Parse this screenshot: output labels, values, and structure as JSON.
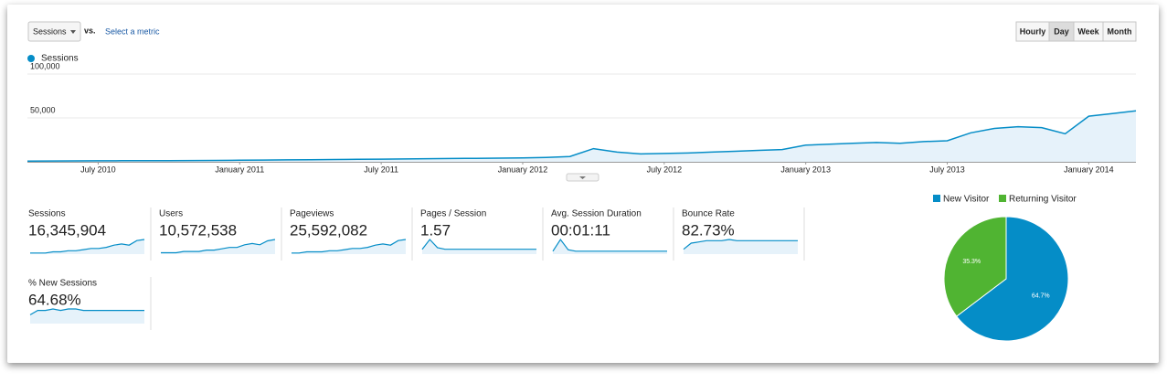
{
  "controls": {
    "metric": "Sessions",
    "vs": "vs.",
    "compare": "Select a metric",
    "granularity": [
      "Hourly",
      "Day",
      "Week",
      "Month"
    ],
    "active": 1
  },
  "chart_data": [
    {
      "type": "line",
      "x": [
        "2010-04",
        "2010-05",
        "2010-06",
        "2010-07",
        "2010-08",
        "2010-09",
        "2010-10",
        "2010-11",
        "2010-12",
        "2011-01",
        "2011-02",
        "2011-03",
        "2011-04",
        "2011-05",
        "2011-06",
        "2011-07",
        "2011-08",
        "2011-09",
        "2011-10",
        "2011-11",
        "2011-12",
        "2012-01",
        "2012-02",
        "2012-03",
        "2012-04",
        "2012-05",
        "2012-06",
        "2012-07",
        "2012-08",
        "2012-09",
        "2012-10",
        "2012-11",
        "2012-12",
        "2013-01",
        "2013-02",
        "2013-03",
        "2013-04",
        "2013-05",
        "2013-06",
        "2013-07",
        "2013-08",
        "2013-09",
        "2013-10",
        "2013-11",
        "2013-12",
        "2014-01",
        "2014-02",
        "2014-03"
      ],
      "series": [
        {
          "name": "Sessions",
          "color": "#058dc7",
          "values": [
            800,
            900,
            1000,
            1100,
            1200,
            1300,
            1400,
            1500,
            1600,
            1800,
            2000,
            2200,
            2400,
            2600,
            2800,
            3000,
            3200,
            3500,
            3800,
            4000,
            4200,
            4500,
            5000,
            6000,
            15000,
            11000,
            9000,
            9500,
            10000,
            11000,
            12000,
            13000,
            14000,
            19000,
            20000,
            21000,
            22000,
            21000,
            23000,
            24000,
            33000,
            38000,
            40000,
            39000,
            32000,
            52000,
            55000,
            58000
          ]
        }
      ],
      "xticks": [
        {
          "value": "2010-07",
          "label": "July 2010"
        },
        {
          "value": "2011-01",
          "label": "January 2011"
        },
        {
          "value": "2011-07",
          "label": "July 2011"
        },
        {
          "value": "2012-01",
          "label": "January 2012"
        },
        {
          "value": "2012-07",
          "label": "July 2012"
        },
        {
          "value": "2013-01",
          "label": "January 2013"
        },
        {
          "value": "2013-07",
          "label": "July 2013"
        },
        {
          "value": "2014-01",
          "label": "January 2014"
        }
      ],
      "ylim": [
        0,
        100000
      ],
      "yticks": [
        {
          "value": 50000,
          "label": "50,000"
        },
        {
          "value": 100000,
          "label": "100,000"
        }
      ],
      "grid": true
    },
    {
      "type": "pie",
      "categories": [
        "New Visitor",
        "Returning Visitor"
      ],
      "values": [
        64.7,
        35.3
      ],
      "value_labels": [
        "64.7%",
        "35.3%"
      ],
      "colors": [
        "#058dc7",
        "#50b432"
      ]
    }
  ],
  "scorecards": [
    {
      "label": "Sessions",
      "value": "16,345,904",
      "trend": [
        1,
        1,
        1,
        2,
        2,
        3,
        3,
        4,
        5,
        5,
        6,
        8,
        9,
        8,
        12,
        13
      ]
    },
    {
      "label": "Users",
      "value": "10,572,538",
      "trend": [
        1,
        1,
        1,
        2,
        2,
        2,
        3,
        3,
        4,
        5,
        5,
        7,
        8,
        7,
        10,
        11
      ]
    },
    {
      "label": "Pageviews",
      "value": "25,592,082",
      "trend": [
        1,
        1,
        2,
        2,
        2,
        3,
        3,
        4,
        5,
        5,
        6,
        8,
        9,
        8,
        12,
        13
      ]
    },
    {
      "label": "Pages / Session",
      "value": "1.57",
      "trend": [
        3,
        9,
        4,
        3,
        3,
        3,
        3,
        3,
        3,
        3,
        3,
        3,
        3,
        3,
        3,
        3
      ]
    },
    {
      "label": "Avg. Session Duration",
      "value": "00:01:11",
      "trend": [
        2,
        10,
        3,
        2,
        2,
        2,
        2,
        2,
        2,
        2,
        2,
        2,
        2,
        2,
        2,
        2
      ]
    },
    {
      "label": "Bounce Rate",
      "value": "82.73%",
      "trend": [
        4,
        9,
        10,
        11,
        11,
        11,
        12,
        11,
        11,
        11,
        11,
        11,
        11,
        11,
        11,
        11
      ]
    },
    {
      "label": "% New Sessions",
      "value": "64.68%",
      "trend": [
        6,
        9,
        9,
        10,
        9,
        10,
        10,
        9,
        9,
        9,
        9,
        9,
        9,
        9,
        9,
        9
      ]
    }
  ]
}
